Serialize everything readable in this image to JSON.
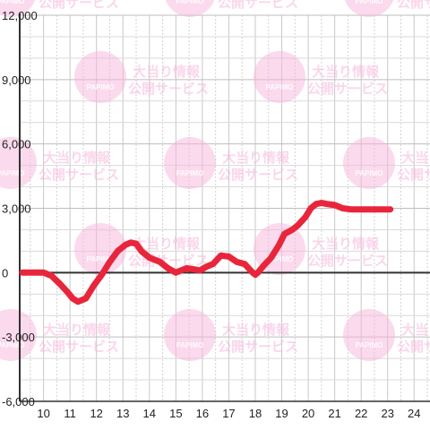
{
  "chart_data": {
    "type": "line",
    "title": "",
    "xlabel": "",
    "ylabel": "",
    "x_ticks": [
      "10",
      "11",
      "12",
      "13",
      "14",
      "15",
      "16",
      "17",
      "18",
      "19",
      "20",
      "21",
      "22",
      "23",
      "24"
    ],
    "y_ticks": [
      "12,000",
      "9,000",
      "6,000",
      "3,000",
      "0",
      "-3,000",
      "-6,000"
    ],
    "xlim": [
      9.1,
      24.6
    ],
    "ylim": [
      -6000,
      12000
    ],
    "grid": true,
    "series": [
      {
        "name": "",
        "color": "#e8263b",
        "x": [
          9.2,
          9.6,
          10.0,
          10.3,
          10.6,
          10.9,
          11.1,
          11.3,
          11.6,
          11.9,
          12.2,
          12.5,
          12.8,
          13.1,
          13.3,
          13.5,
          13.7,
          14.0,
          14.2,
          14.4,
          14.7,
          15.0,
          15.2,
          15.4,
          15.7,
          15.9,
          16.2,
          16.4,
          16.7,
          17.0,
          17.3,
          17.6,
          17.9,
          18.0,
          18.1,
          18.3,
          18.6,
          18.9,
          19.1,
          19.4,
          19.6,
          19.9,
          20.1,
          20.3,
          20.5,
          20.7,
          21.0,
          21.3,
          21.6,
          22.0,
          22.5,
          22.9,
          23.1
        ],
        "y": [
          0,
          0,
          0,
          -150,
          -500,
          -900,
          -1200,
          -1350,
          -1200,
          -600,
          -100,
          500,
          1000,
          1300,
          1400,
          1350,
          1000,
          700,
          600,
          500,
          200,
          0,
          100,
          200,
          150,
          100,
          300,
          400,
          800,
          750,
          500,
          400,
          0,
          -100,
          0,
          300,
          700,
          1300,
          1800,
          2000,
          2200,
          2600,
          3000,
          3200,
          3250,
          3200,
          3150,
          3000,
          2950,
          2950,
          2950,
          2950,
          2950
        ]
      }
    ]
  },
  "watermark": {
    "line1": "大当り情報",
    "line2": "公開サービス",
    "logo_text": "PAPIMO",
    "color": "#f7b6dc"
  }
}
